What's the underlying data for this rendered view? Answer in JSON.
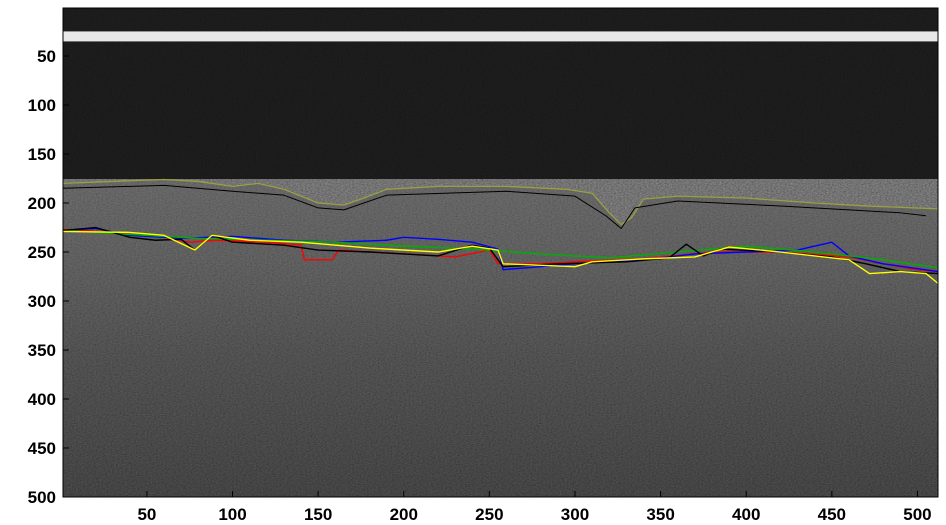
{
  "figure": {
    "type": "image-with-overlay",
    "x_axis": {
      "ticks": [
        50,
        100,
        150,
        200,
        250,
        300,
        350,
        400,
        450,
        500
      ],
      "range": [
        1,
        512
      ]
    },
    "y_axis": {
      "ticks": [
        50,
        100,
        150,
        200,
        250,
        300,
        350,
        400,
        450,
        500
      ],
      "range": [
        1,
        500
      ],
      "direction": "reverse"
    },
    "background": {
      "description_colors": {
        "dark": "#151515",
        "tissue": "#5a5a5a"
      }
    },
    "bright_band_y": 30,
    "surface_boundary": {
      "color": "#9aa040",
      "points": [
        [
          1,
          180
        ],
        [
          30,
          178
        ],
        [
          60,
          176
        ],
        [
          80,
          178
        ],
        [
          100,
          183
        ],
        [
          115,
          180
        ],
        [
          130,
          186
        ],
        [
          150,
          200
        ],
        [
          165,
          202
        ],
        [
          175,
          196
        ],
        [
          190,
          186
        ],
        [
          220,
          183
        ],
        [
          260,
          183
        ],
        [
          295,
          186
        ],
        [
          310,
          190
        ],
        [
          320,
          210
        ],
        [
          327,
          222
        ],
        [
          333,
          215
        ],
        [
          340,
          196
        ],
        [
          360,
          193
        ],
        [
          400,
          195
        ],
        [
          440,
          200
        ],
        [
          470,
          203
        ],
        [
          512,
          206
        ]
      ]
    },
    "surface_inner": {
      "color": "#000000",
      "points": [
        [
          1,
          185
        ],
        [
          60,
          182
        ],
        [
          100,
          188
        ],
        [
          130,
          192
        ],
        [
          150,
          205
        ],
        [
          165,
          207
        ],
        [
          190,
          192
        ],
        [
          260,
          188
        ],
        [
          300,
          193
        ],
        [
          318,
          213
        ],
        [
          327,
          226
        ],
        [
          335,
          205
        ],
        [
          360,
          198
        ],
        [
          420,
          203
        ],
        [
          460,
          207
        ],
        [
          490,
          210
        ],
        [
          505,
          213
        ]
      ]
    },
    "segmentations": [
      {
        "color": "#ff0000",
        "points": [
          [
            1,
            227
          ],
          [
            30,
            230
          ],
          [
            60,
            235
          ],
          [
            75,
            240
          ],
          [
            90,
            238
          ],
          [
            120,
            240
          ],
          [
            140,
            243
          ],
          [
            142,
            258
          ],
          [
            158,
            258
          ],
          [
            162,
            248
          ],
          [
            200,
            252
          ],
          [
            230,
            255
          ],
          [
            250,
            248
          ],
          [
            255,
            262
          ],
          [
            280,
            262
          ],
          [
            300,
            260
          ],
          [
            340,
            257
          ],
          [
            380,
            250
          ],
          [
            420,
            250
          ],
          [
            460,
            255
          ],
          [
            480,
            262
          ],
          [
            500,
            268
          ],
          [
            512,
            270
          ]
        ]
      },
      {
        "color": "#0000ff",
        "points": [
          [
            1,
            228
          ],
          [
            20,
            226
          ],
          [
            40,
            233
          ],
          [
            70,
            236
          ],
          [
            100,
            234
          ],
          [
            130,
            238
          ],
          [
            160,
            240
          ],
          [
            190,
            238
          ],
          [
            200,
            235
          ],
          [
            220,
            237
          ],
          [
            240,
            240
          ],
          [
            255,
            247
          ],
          [
            258,
            268
          ],
          [
            280,
            265
          ],
          [
            300,
            262
          ],
          [
            340,
            258
          ],
          [
            370,
            252
          ],
          [
            400,
            250
          ],
          [
            430,
            248
          ],
          [
            450,
            240
          ],
          [
            460,
            254
          ],
          [
            480,
            262
          ],
          [
            512,
            270
          ]
        ]
      },
      {
        "color": "#00b000",
        "points": [
          [
            1,
            228
          ],
          [
            40,
            232
          ],
          [
            80,
            236
          ],
          [
            120,
            238
          ],
          [
            160,
            240
          ],
          [
            200,
            244
          ],
          [
            240,
            247
          ],
          [
            280,
            252
          ],
          [
            320,
            256
          ],
          [
            360,
            250
          ],
          [
            400,
            244
          ],
          [
            440,
            250
          ],
          [
            480,
            258
          ],
          [
            512,
            266
          ]
        ]
      },
      {
        "color": "#000000",
        "points": [
          [
            1,
            228
          ],
          [
            20,
            225
          ],
          [
            40,
            235
          ],
          [
            55,
            238
          ],
          [
            70,
            237
          ],
          [
            78,
            248
          ],
          [
            88,
            233
          ],
          [
            100,
            240
          ],
          [
            130,
            243
          ],
          [
            150,
            248
          ],
          [
            180,
            250
          ],
          [
            220,
            254
          ],
          [
            240,
            243
          ],
          [
            250,
            246
          ],
          [
            258,
            265
          ],
          [
            290,
            262
          ],
          [
            330,
            260
          ],
          [
            355,
            256
          ],
          [
            365,
            242
          ],
          [
            375,
            254
          ],
          [
            385,
            247
          ],
          [
            420,
            250
          ],
          [
            450,
            255
          ],
          [
            470,
            262
          ],
          [
            490,
            270
          ],
          [
            512,
            272
          ]
        ]
      },
      {
        "color": "#ffff00",
        "points": [
          [
            1,
            229
          ],
          [
            40,
            230
          ],
          [
            60,
            233
          ],
          [
            78,
            248
          ],
          [
            88,
            233
          ],
          [
            110,
            238
          ],
          [
            140,
            240
          ],
          [
            180,
            246
          ],
          [
            220,
            250
          ],
          [
            240,
            244
          ],
          [
            255,
            248
          ],
          [
            258,
            262
          ],
          [
            300,
            265
          ],
          [
            310,
            260
          ],
          [
            340,
            257
          ],
          [
            370,
            255
          ],
          [
            390,
            245
          ],
          [
            420,
            250
          ],
          [
            460,
            258
          ],
          [
            472,
            272
          ],
          [
            490,
            270
          ],
          [
            505,
            272
          ],
          [
            512,
            282
          ]
        ]
      }
    ]
  }
}
